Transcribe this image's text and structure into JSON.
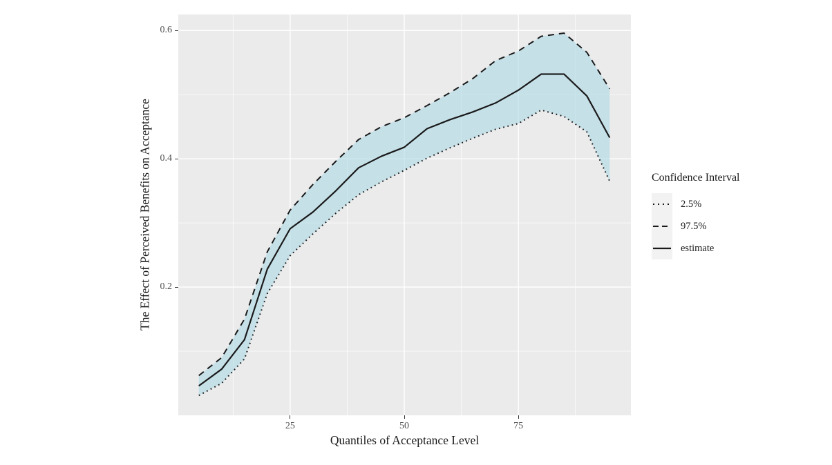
{
  "chart_data": {
    "type": "line",
    "title": "",
    "xlabel": "Quantiles of Acceptance Level",
    "ylabel": "The Effect of Perceived Benefits on Acceptance",
    "x": [
      5,
      10,
      15,
      20,
      25,
      30,
      35,
      40,
      45,
      50,
      55,
      60,
      65,
      70,
      75,
      80,
      85,
      90,
      95
    ],
    "series": [
      {
        "name": "2.5%",
        "style": "dotted",
        "values": [
          0.031,
          0.05,
          0.088,
          0.19,
          0.249,
          0.283,
          0.315,
          0.344,
          0.364,
          0.382,
          0.401,
          0.417,
          0.432,
          0.446,
          0.455,
          0.476,
          0.466,
          0.442,
          0.365
        ]
      },
      {
        "name": "97.5%",
        "style": "dashed",
        "values": [
          0.062,
          0.09,
          0.15,
          0.255,
          0.32,
          0.36,
          0.396,
          0.43,
          0.45,
          0.464,
          0.483,
          0.503,
          0.525,
          0.553,
          0.568,
          0.591,
          0.596,
          0.566,
          0.509
        ]
      },
      {
        "name": "estimate",
        "style": "solid",
        "values": [
          0.046,
          0.072,
          0.118,
          0.228,
          0.291,
          0.317,
          0.35,
          0.386,
          0.404,
          0.418,
          0.447,
          0.461,
          0.473,
          0.487,
          0.507,
          0.532,
          0.532,
          0.498,
          0.433
        ]
      }
    ],
    "ribbon": {
      "lower": "2.5%",
      "upper": "97.5%"
    },
    "xlim": [
      0.5,
      99.65
    ],
    "ylim": [
      0.0,
      0.625
    ],
    "x_major_ticks": [
      25,
      50,
      75
    ],
    "y_major_ticks": [
      0.2,
      0.4,
      0.6
    ],
    "x_minor_gridlines": [
      12.5,
      37.5,
      62.5,
      87.5
    ],
    "y_minor_gridlines": [
      0.1,
      0.3,
      0.5
    ],
    "grid": "on",
    "legend_position": "right",
    "legend": {
      "title": "Confidence Interval",
      "items": [
        {
          "label": "2.5%",
          "style": "dotted"
        },
        {
          "label": "97.5%",
          "style": "dashed"
        },
        {
          "label": "estimate",
          "style": "solid"
        }
      ]
    },
    "colors": {
      "panel_background": "#EBEBEB",
      "gridline": "#FFFFFF",
      "ribbon_fill": "rgba(173,216,230,0.6)",
      "line": "#1a1a1a",
      "tick_label": "#4d4d4d",
      "axis_title": "#1a1a1a",
      "legend_key_background": "#F2F2F2"
    }
  }
}
